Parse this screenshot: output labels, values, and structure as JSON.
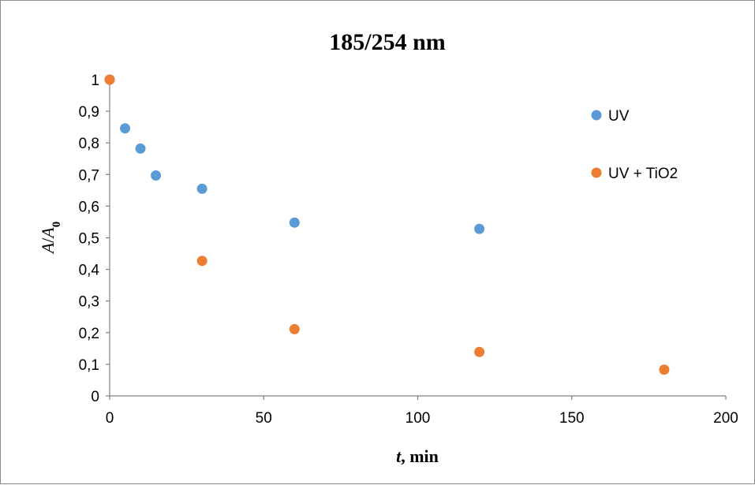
{
  "chart_data": {
    "type": "scatter",
    "title": "185/254 nm",
    "xlabel": "t, min",
    "xlabel_italic": "t",
    "xlabel_rest": ", min",
    "ylabel": "A/A0",
    "ylabel_parts": {
      "a": "A",
      "slash": "/",
      "a0": "A",
      "sub": "0"
    },
    "xlim": [
      0,
      200
    ],
    "ylim": [
      0,
      1
    ],
    "xticks": [
      0,
      50,
      100,
      150,
      200
    ],
    "xtick_labels": [
      "0",
      "50",
      "100",
      "150",
      "200"
    ],
    "yticks": [
      0,
      0.1,
      0.2,
      0.3,
      0.4,
      0.5,
      0.6,
      0.7,
      0.8,
      0.9,
      1
    ],
    "ytick_labels": [
      "0",
      "0,1",
      "0,2",
      "0,3",
      "0,4",
      "0,5",
      "0,6",
      "0,7",
      "0,8",
      "0,9",
      "1"
    ],
    "grid": false,
    "legend_position": "right",
    "series": [
      {
        "name": "UV",
        "color": "#5b9bd5",
        "points": [
          {
            "x": 0,
            "y": 1.0
          },
          {
            "x": 5,
            "y": 0.846
          },
          {
            "x": 10,
            "y": 0.782
          },
          {
            "x": 15,
            "y": 0.697
          },
          {
            "x": 30,
            "y": 0.655
          },
          {
            "x": 60,
            "y": 0.548
          },
          {
            "x": 120,
            "y": 0.528
          }
        ]
      },
      {
        "name": "UV + TiO2",
        "color": "#ed7d31",
        "points": [
          {
            "x": 0,
            "y": 1.0
          },
          {
            "x": 30,
            "y": 0.427
          },
          {
            "x": 60,
            "y": 0.211
          },
          {
            "x": 120,
            "y": 0.139
          },
          {
            "x": 180,
            "y": 0.083
          }
        ]
      }
    ]
  }
}
